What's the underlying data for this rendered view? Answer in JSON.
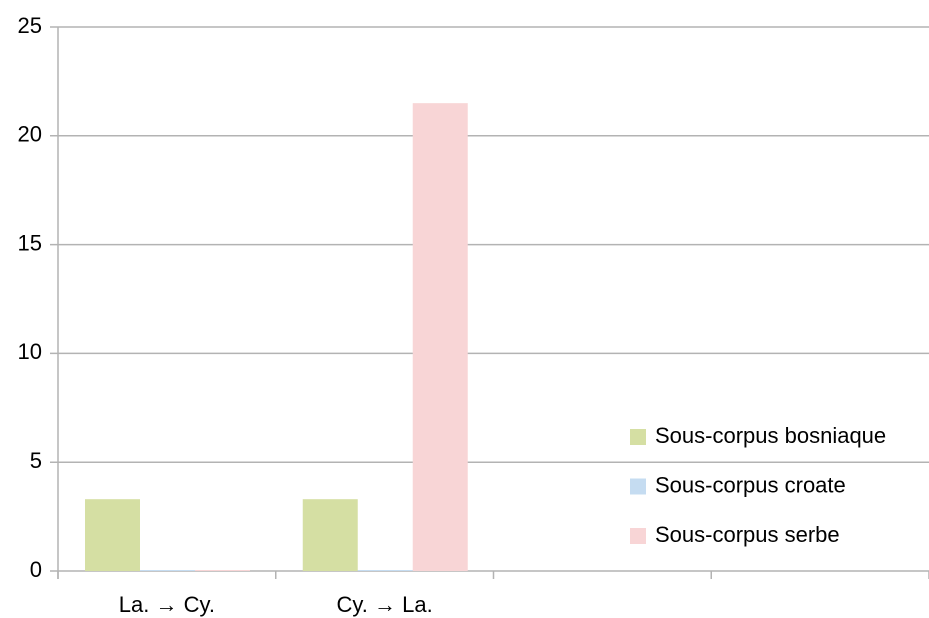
{
  "chart_data": {
    "type": "bar",
    "categories": [
      "La. → Cy.",
      "Cy. → La.",
      null,
      null
    ],
    "series": [
      {
        "name": "Sous-corpus bosniaque",
        "color": "#d5dfa3",
        "values": [
          3.3,
          3.3,
          null,
          null
        ]
      },
      {
        "name": "Sous-corpus croate",
        "color": "#c5dcf1",
        "values": [
          0,
          0,
          null,
          null
        ]
      },
      {
        "name": "Sous-corpus serbe",
        "color": "#f8d5d6",
        "values": [
          0,
          21.5,
          null,
          null
        ]
      }
    ],
    "ylim": [
      0,
      25
    ],
    "yticks": [
      0,
      5,
      10,
      15,
      20,
      25
    ],
    "grid": true,
    "legend": "right"
  }
}
